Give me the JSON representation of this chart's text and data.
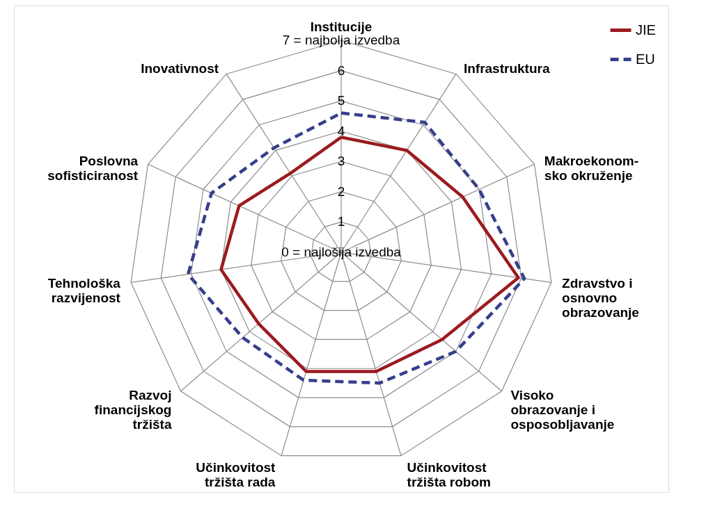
{
  "chart_data": {
    "type": "radar",
    "categories": [
      "Institucije",
      "Infrastruktura",
      "Makroekonom-\nsko okruženje",
      "Zdravstvo i\nosnovno\nobrazovanje",
      "Visoko\nobrazovanje i\nosposobljavanje",
      "Učinkovitost\ntržišta robom",
      "Učinkovitost\ntržišta rada",
      "Razvoj\nfinancijskog\ntržišta",
      "Tehnološka\nrazvijenost",
      "Poslovna\nsofisticiranost",
      "Inovativnost"
    ],
    "series": [
      {
        "name": "JIE",
        "color": "#9b1b1f",
        "line_style": "solid",
        "values": [
          3.8,
          4.0,
          4.4,
          5.9,
          4.4,
          4.1,
          4.1,
          3.6,
          4.0,
          3.7,
          3.1
        ]
      },
      {
        "name": "EU",
        "color": "#353f8a",
        "line_style": "dashed",
        "values": [
          4.6,
          5.1,
          5.0,
          6.1,
          5.0,
          4.5,
          4.4,
          4.3,
          5.1,
          4.7,
          4.1
        ]
      }
    ],
    "ylim": [
      0,
      7
    ],
    "yticks": [
      {
        "value": 0,
        "label": "0 = najlošija izvedba"
      },
      1,
      2,
      3,
      4,
      5,
      6,
      {
        "value": 7,
        "label": "7 = najbolja izvedba"
      }
    ],
    "grid": true,
    "legend": "top right"
  }
}
